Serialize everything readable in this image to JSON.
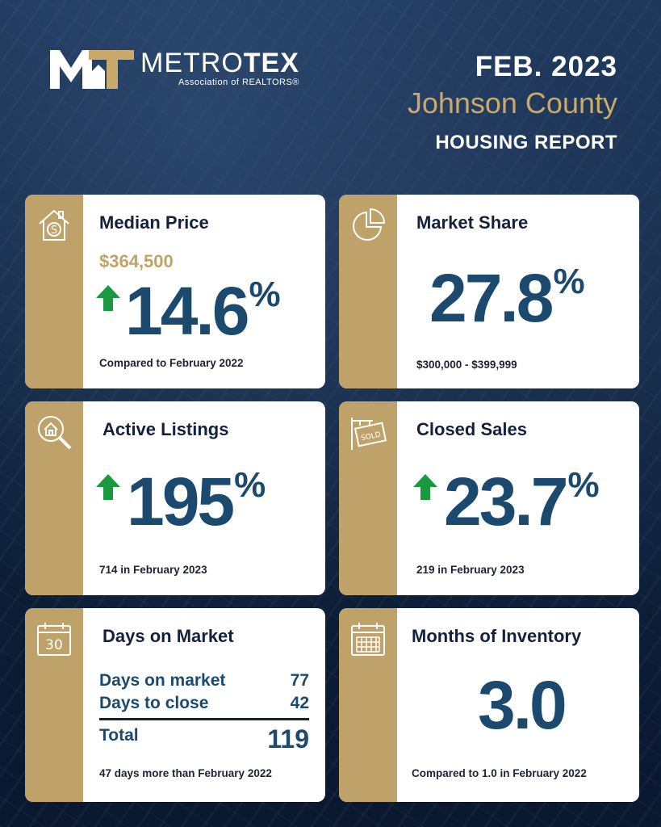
{
  "brand": {
    "name_a": "METRO",
    "name_b": "TEX",
    "subtitle": "Association of REALTORS®"
  },
  "header": {
    "date": "FEB. 2023",
    "county": "Johnson County",
    "report": "HOUSING REPORT"
  },
  "colors": {
    "gold": "#bfa26a",
    "navy": "#1b4a6e",
    "arrow_green": "#1a9a3e"
  },
  "cards": {
    "median_price": {
      "icon": "house-dollar-icon",
      "title": "Median Price",
      "price": "$364,500",
      "value": "14.6",
      "unit": "%",
      "trend": "up",
      "footer": "Compared to February 2022"
    },
    "market_share": {
      "icon": "pie-chart-icon",
      "title": "Market Share",
      "value": "27.8",
      "unit": "%",
      "footer": "$300,000 - $399,999"
    },
    "active_listings": {
      "icon": "house-search-icon",
      "title": "Active Listings",
      "value": "195",
      "unit": "%",
      "trend": "up",
      "footer": "714 in February 2023"
    },
    "closed_sales": {
      "icon": "sold-sign-icon",
      "title": "Closed Sales",
      "value": "23.7",
      "unit": "%",
      "trend": "up",
      "footer": "219 in February 2023"
    },
    "days_on_market": {
      "icon": "calendar-30-icon",
      "icon_text": "30",
      "title": "Days on Market",
      "rows": [
        {
          "label": "Days on market",
          "value": "77"
        },
        {
          "label": "Days to close",
          "value": "42"
        }
      ],
      "total_label": "Total",
      "total_value": "119",
      "footer": "47 days more than February 2022"
    },
    "months_inventory": {
      "icon": "calendar-grid-icon",
      "title": "Months of Inventory",
      "value": "3.0",
      "footer": "Compared to 1.0 in February 2022"
    }
  }
}
